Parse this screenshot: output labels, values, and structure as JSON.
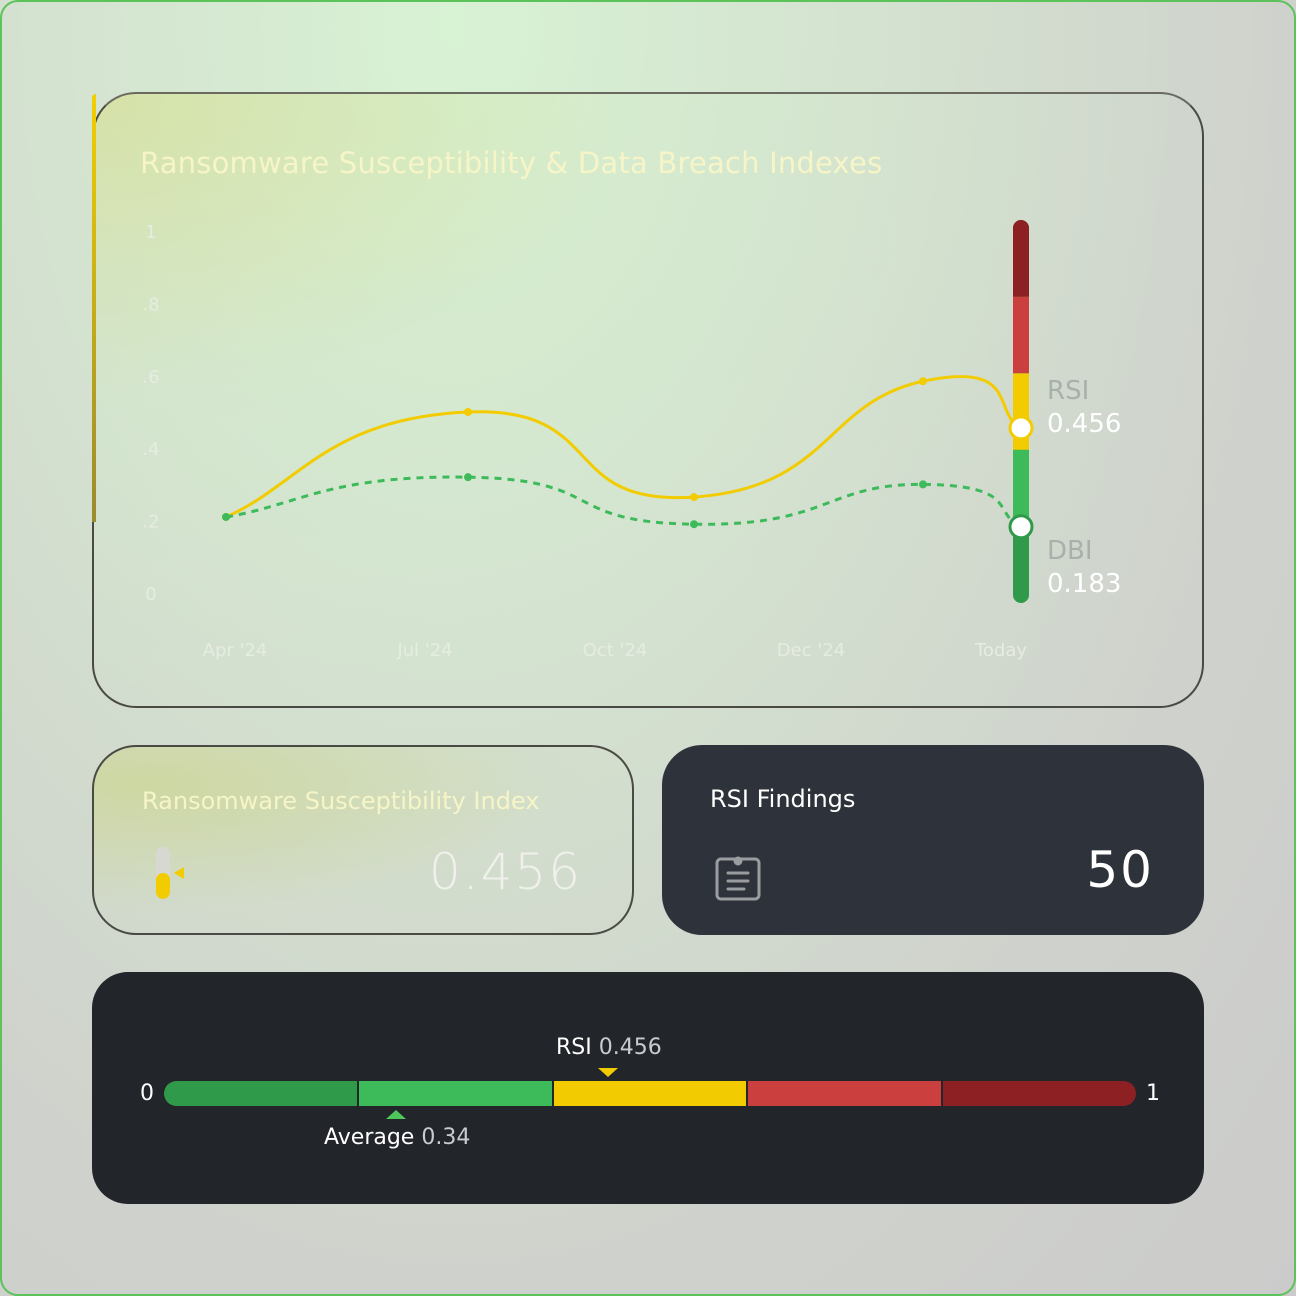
{
  "chart_data": {
    "type": "line",
    "title": "Ransomware Susceptibility & Data Breach Indexes",
    "x_tick_labels": [
      "Apr '24",
      "Jul '24",
      "Oct '24",
      "Dec '24",
      "Today"
    ],
    "y_tick_labels": [
      "0",
      ".2",
      ".4",
      ".6",
      ".8",
      "1"
    ],
    "ylim": [
      0,
      1
    ],
    "grid": false,
    "series": [
      {
        "name": "RSI",
        "values": [
          0.21,
          0.5,
          0.265,
          0.585,
          0.456
        ],
        "color": "#f2cc00",
        "style": "solid"
      },
      {
        "name": "DBI",
        "values": [
          0.21,
          0.32,
          0.19,
          0.3,
          0.183
        ],
        "color": "#3dba5a",
        "style": "dashed"
      }
    ],
    "gauge_colors": [
      "#2f9a4a",
      "#3dba5a",
      "#f2cc00",
      "#cc3f3f",
      "#8c2023"
    ],
    "current": {
      "rsi_label": "RSI",
      "rsi_value": "0.456",
      "dbi_label": "DBI",
      "dbi_value": "0.183"
    }
  },
  "rsi_card": {
    "title": "Ransomware Susceptibility Index",
    "value": "0.456",
    "level": 0.456
  },
  "findings_card": {
    "title": "RSI Findings",
    "value": "50",
    "icon": "clipboard-icon"
  },
  "scale": {
    "min_label": "0",
    "max_label": "1",
    "rsi_label": "RSI",
    "rsi_value": "0.456",
    "avg_label": "Average",
    "avg_value": "0.34"
  }
}
